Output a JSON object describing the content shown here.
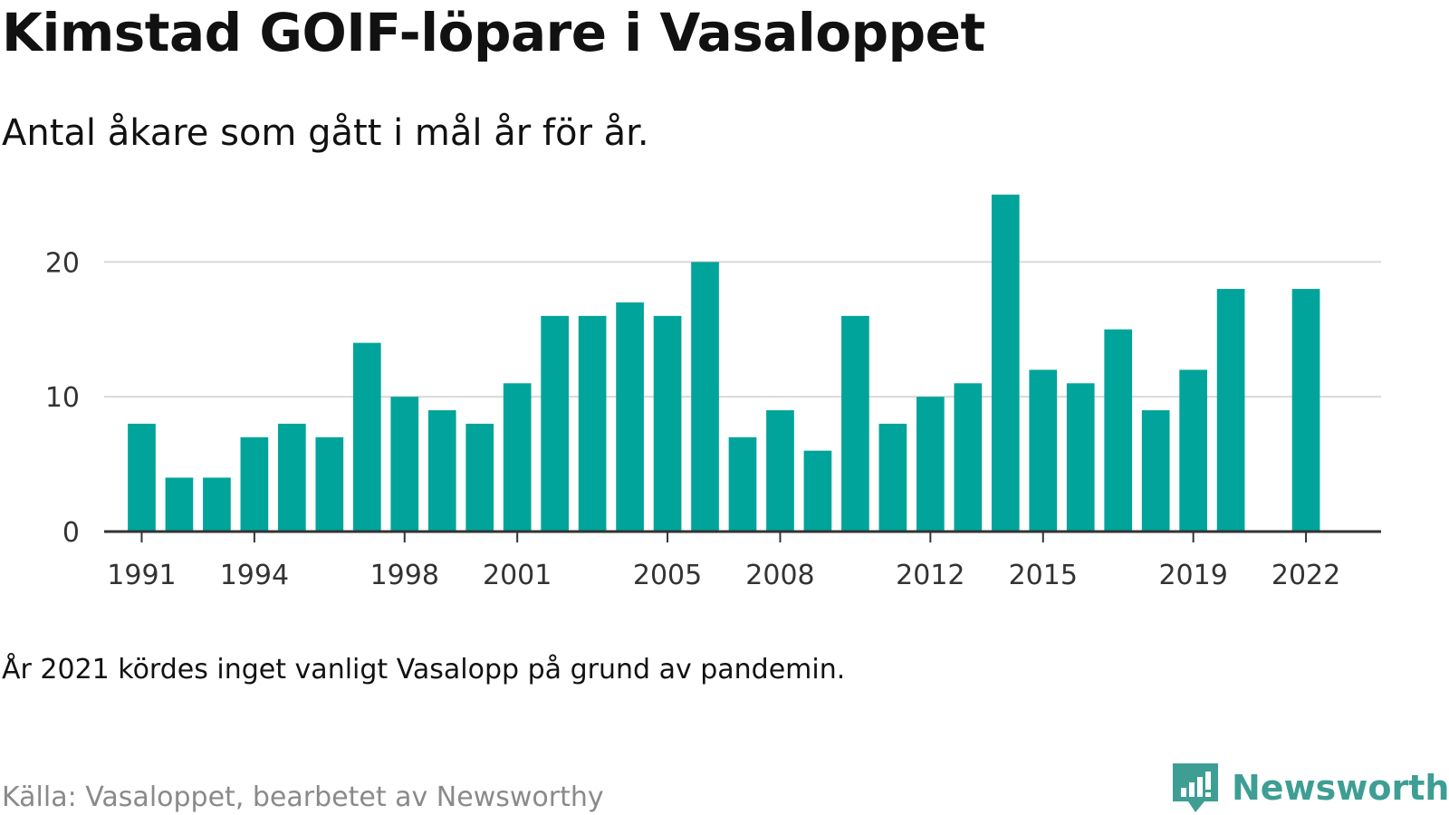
{
  "title": "Kimstad GOIF-löpare i Vasaloppet",
  "subtitle": "Antal åkare som gått i mål år för år.",
  "note": "År 2021 kördes inget vanligt Vasalopp på grund av pandemin.",
  "source": "Källa: Vasaloppet, bearbetet av Newsworthy",
  "logo": {
    "text": "Newsworthy",
    "icon": "newsworthy-logo-icon",
    "color": "#3e9e94"
  },
  "chart_data": {
    "type": "bar",
    "x": [
      1991,
      1992,
      1993,
      1994,
      1995,
      1996,
      1997,
      1998,
      1999,
      2000,
      2001,
      2002,
      2003,
      2004,
      2005,
      2006,
      2007,
      2008,
      2009,
      2010,
      2011,
      2012,
      2013,
      2014,
      2015,
      2016,
      2017,
      2018,
      2019,
      2020,
      2022
    ],
    "values": [
      8,
      4,
      4,
      7,
      8,
      7,
      14,
      10,
      9,
      8,
      11,
      16,
      16,
      17,
      16,
      20,
      7,
      9,
      6,
      16,
      8,
      10,
      11,
      25,
      12,
      11,
      15,
      9,
      12,
      18,
      18
    ],
    "xticks": [
      "1991",
      "1994",
      "1998",
      "2001",
      "2005",
      "2008",
      "2012",
      "2015",
      "2019",
      "2022"
    ],
    "yticks": [
      "0",
      "10",
      "20"
    ],
    "xlim": [
      1990,
      2024
    ],
    "ylim": [
      0,
      26
    ],
    "bar_color": "#00a49a",
    "grid": true,
    "gridline_color": "#d9d9d9",
    "axis_color": "#333333"
  }
}
